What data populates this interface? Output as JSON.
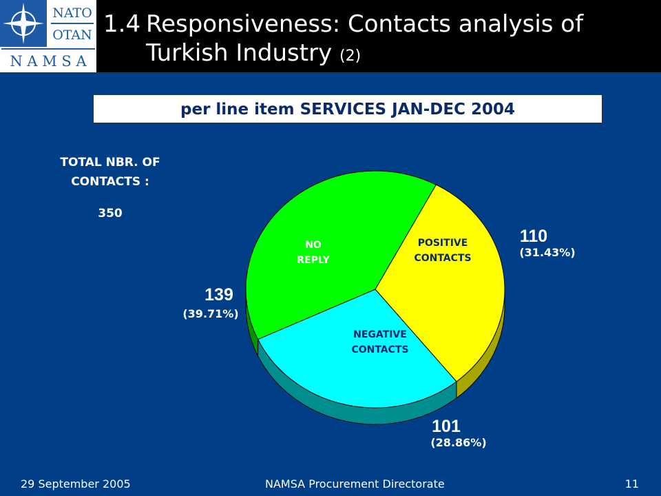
{
  "header": {
    "logo_text_top": "NATO",
    "logo_text_mid": "OTAN",
    "logo_text_bottom": "N A M S A",
    "title_number": "1.4",
    "title_line1": "Responsiveness: Contacts analysis of",
    "title_line2": "Turkish Industry",
    "title_suffix": "(2)"
  },
  "subtitle": "per  line  item   SERVICES  JAN-DEC 2004",
  "total": {
    "label_line1": "TOTAL  NBR. OF",
    "label_line2": "CONTACTS :",
    "value": "350"
  },
  "chart_data": {
    "type": "pie",
    "title": "per  line  item   SERVICES  JAN-DEC 2004",
    "slices": [
      {
        "label_line1": "POSITIVE",
        "label_line2": "CONTACTS",
        "value": 110,
        "value_text": "110",
        "percent_text": "(31.43%)",
        "color": "#ffff00",
        "side_color": "#a6a600"
      },
      {
        "label_line1": "NEGATIVE",
        "label_line2": "CONTACTS",
        "value": 101,
        "value_text": "101",
        "percent_text": "(28.86%)",
        "color": "#00ffff",
        "side_color": "#008e8e"
      },
      {
        "label_line1": "NO",
        "label_line2": "REPLY",
        "value": 139,
        "value_text": "139",
        "percent_text": "(39.71%)",
        "color": "#00ff00",
        "side_color": "#009400"
      }
    ],
    "legend": "none"
  },
  "footer": {
    "date": "29 September 2005",
    "organization": "NAMSA Procurement Directorate",
    "page": "11"
  },
  "colors": {
    "background": "#003f87",
    "header": "#000000",
    "logo_blue": "#1f5aa6"
  },
  "icons": [
    "nato-compass-icon"
  ]
}
